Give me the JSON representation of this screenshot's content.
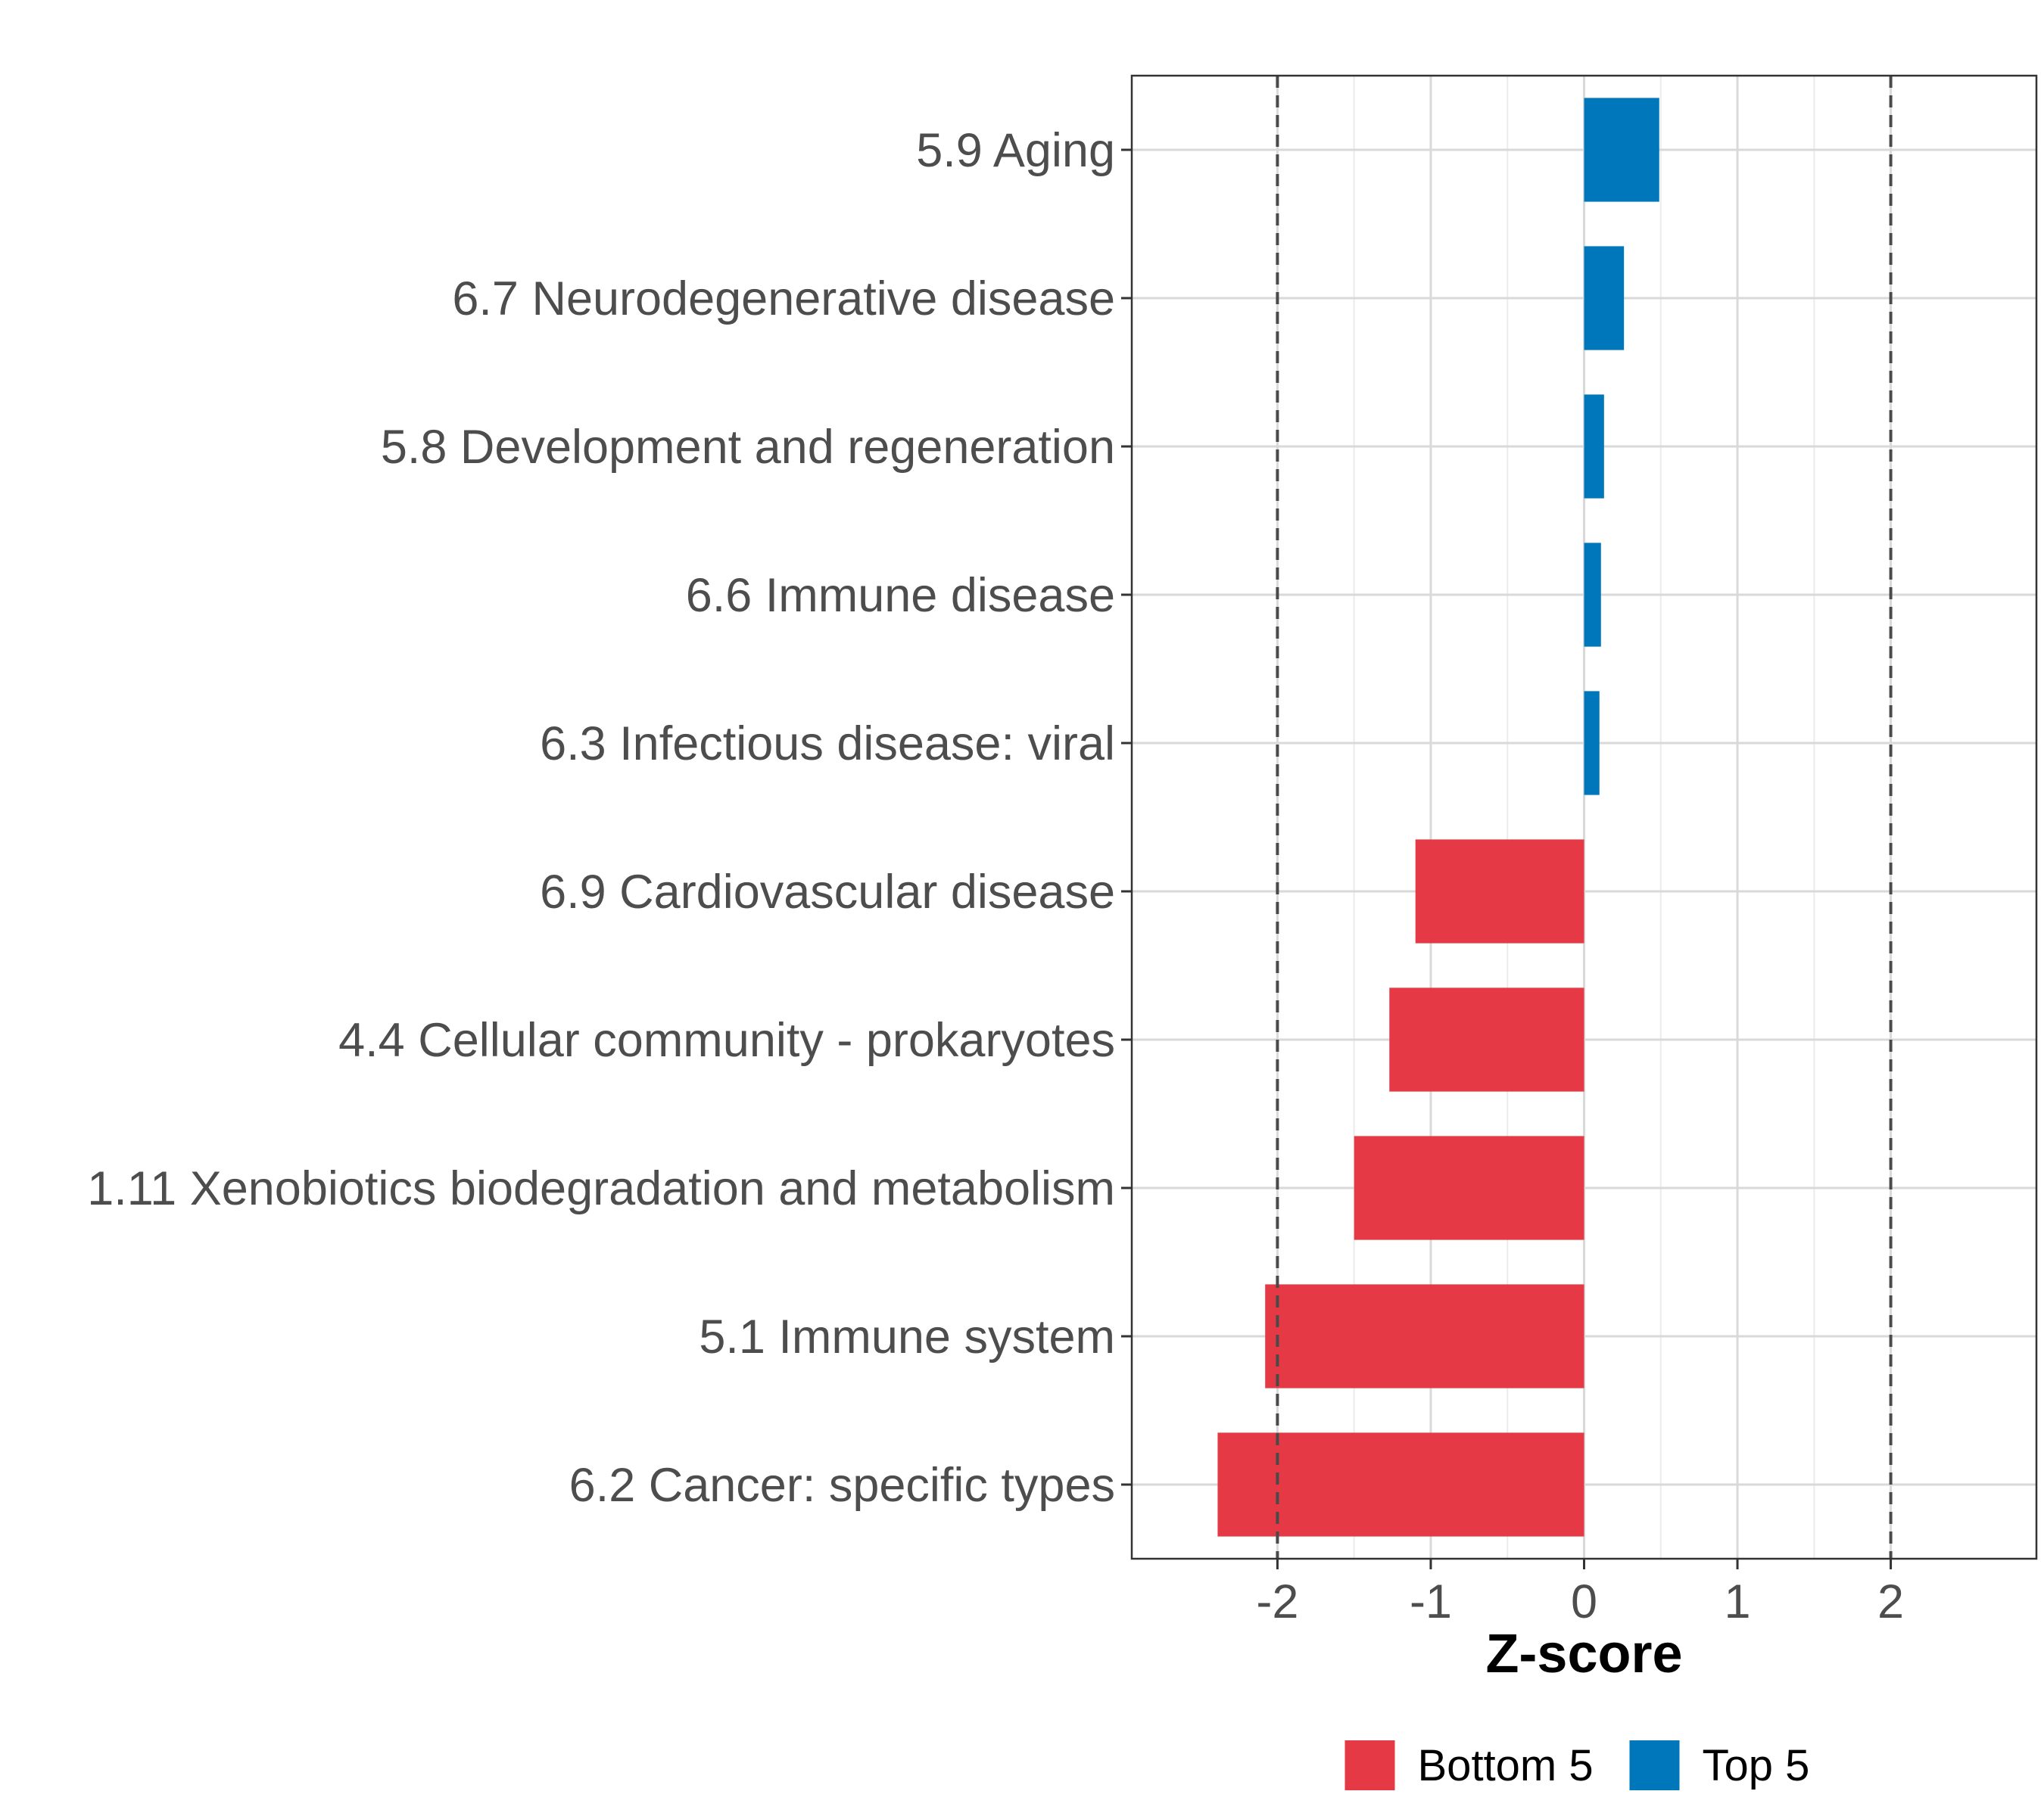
{
  "chart_data": {
    "type": "bar",
    "orientation": "horizontal",
    "categories": [
      "5.9 Aging",
      "6.7 Neurodegenerative disease",
      "5.8 Development and regeneration",
      "6.6 Immune disease",
      "6.3 Infectious disease: viral",
      "6.9 Cardiovascular disease",
      "4.4 Cellular community - prokaryotes",
      "1.11 Xenobiotics biodegradation and metabolism",
      "5.1 Immune system",
      "6.2 Cancer: specific types"
    ],
    "values": [
      0.49,
      0.26,
      0.13,
      0.11,
      0.1,
      -1.1,
      -1.27,
      -1.5,
      -2.08,
      -2.39
    ],
    "groups": [
      "Top 5",
      "Top 5",
      "Top 5",
      "Top 5",
      "Top 5",
      "Bottom 5",
      "Bottom 5",
      "Bottom 5",
      "Bottom 5",
      "Bottom 5"
    ],
    "xlabel": "Z-score",
    "ylabel": "",
    "xlim": [
      -2.95,
      2.95
    ],
    "xticks": [
      -2,
      -1,
      0,
      1,
      2
    ],
    "xtick_labels": [
      "-2",
      "-1",
      "0",
      "1",
      "2"
    ],
    "reference_lines": [
      -2,
      2
    ],
    "grid": true,
    "legend": {
      "position": "bottom",
      "entries": [
        {
          "label": "Bottom 5",
          "color": "#e63946"
        },
        {
          "label": "Top 5",
          "color": "#0077bb"
        }
      ]
    },
    "colors": {
      "Top 5": "#0077bb",
      "Bottom 5": "#e63946"
    }
  }
}
